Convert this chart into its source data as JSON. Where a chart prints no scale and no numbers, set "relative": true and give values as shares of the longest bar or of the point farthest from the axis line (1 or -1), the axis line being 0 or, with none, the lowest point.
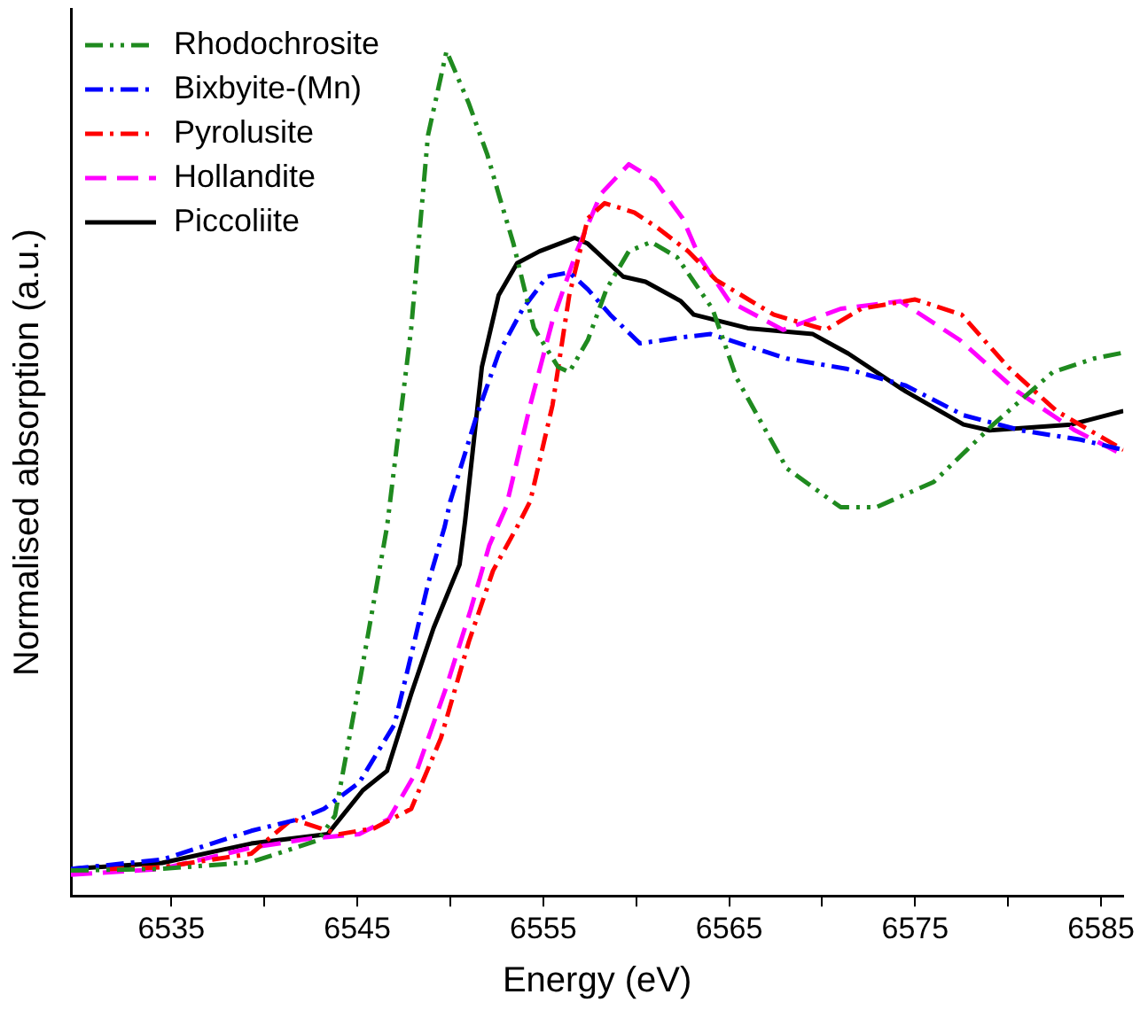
{
  "chart_data": {
    "type": "line",
    "relative": true,
    "xlabel": "Energy (eV)",
    "ylabel": "Normalised absorption (a.u.)",
    "xlim": [
      6529.6,
      6586.2
    ],
    "xticks": [
      6535,
      {
        "value": 6540,
        "label": null
      },
      6545,
      {
        "value": 6550,
        "label": null
      },
      6555,
      {
        "value": 6560,
        "label": null
      },
      6565,
      {
        "value": 6570,
        "label": null
      },
      6575,
      {
        "value": 6580,
        "label": null
      },
      6585
    ],
    "grid": false,
    "legend": "top left",
    "marker": "none",
    "series": [
      {
        "name": "Rhodochrosite",
        "color": "#1f8a1f",
        "line_style": "dashdotdot",
        "x": [
          6529.6,
          6534.5,
          6539.3,
          6542.9,
          6543.8,
          6545.2,
          6546.6,
          6547.9,
          6548.8,
          6549.8,
          6551.0,
          6552.0,
          6552.6,
          6553.4,
          6554.5,
          6555.8,
          6556.4,
          6557.4,
          6558.4,
          6559.6,
          6560.8,
          6562.2,
          6564.1,
          6565.4,
          6568.1,
          6571.0,
          6572.9,
          6576.0,
          6579.2,
          6582.4,
          6584.6,
          6586.2
        ],
        "values": [
          0.03,
          0.032,
          0.04,
          0.066,
          0.095,
          0.262,
          0.437,
          0.672,
          0.9,
          1,
          0.938,
          0.877,
          0.831,
          0.772,
          0.672,
          0.626,
          0.62,
          0.658,
          0.718,
          0.763,
          0.774,
          0.756,
          0.695,
          0.613,
          0.506,
          0.46,
          0.46,
          0.49,
          0.558,
          0.62,
          0.636,
          0.643
        ]
      },
      {
        "name": "Bixbyite-(Mn)",
        "color": "#0000ff",
        "line_style": "dashdot",
        "x": [
          6529.6,
          6534.5,
          6539.3,
          6541.9,
          6543.2,
          6545.1,
          6547.0,
          6547.9,
          6548.8,
          6549.7,
          6550.0,
          6551.4,
          6552.6,
          6553.9,
          6555.2,
          6556.4,
          6557.4,
          6558.6,
          6560.2,
          6562.4,
          6564.0,
          6568.1,
          6571.3,
          6574.5,
          6577.6,
          6580.7,
          6583.9,
          6586.2
        ],
        "values": [
          0.032,
          0.043,
          0.077,
          0.091,
          0.103,
          0.134,
          0.203,
          0.285,
          0.369,
          0.437,
          0.467,
          0.567,
          0.642,
          0.695,
          0.733,
          0.738,
          0.718,
          0.688,
          0.654,
          0.661,
          0.665,
          0.636,
          0.624,
          0.604,
          0.569,
          0.551,
          0.54,
          0.528
        ]
      },
      {
        "name": "Pyrolusite",
        "color": "#ff0000",
        "line_style": "dashdot",
        "x": [
          6529.6,
          6534.5,
          6539.3,
          6541.5,
          6544.0,
          6545.9,
          6547.9,
          6549.5,
          6551.0,
          6552.3,
          6553.6,
          6554.3,
          6555.5,
          6556.4,
          6557.4,
          6558.3,
          6559.9,
          6561.2,
          6562.8,
          6564.3,
          6567.4,
          6570.2,
          6572.1,
          6575.0,
          6577.5,
          6580.0,
          6582.6,
          6586.2
        ],
        "values": [
          0.03,
          0.034,
          0.05,
          0.091,
          0.073,
          0.08,
          0.103,
          0.187,
          0.301,
          0.385,
          0.437,
          0.467,
          0.581,
          0.711,
          0.802,
          0.82,
          0.809,
          0.79,
          0.763,
          0.729,
          0.688,
          0.67,
          0.695,
          0.706,
          0.688,
          0.626,
          0.574,
          0.528
        ]
      },
      {
        "name": "Hollandite",
        "color": "#ff00ff",
        "line_style": "dashed",
        "x": [
          6529.6,
          6534.5,
          6539.3,
          6542.5,
          6545.1,
          6546.7,
          6548.2,
          6549.8,
          6551.1,
          6552.1,
          6553.0,
          6554.3,
          6555.5,
          6556.8,
          6558.1,
          6559.6,
          6561.0,
          6562.5,
          6563.4,
          6565.0,
          6567.9,
          6571.0,
          6574.2,
          6577.4,
          6580.5,
          6583.6,
          6586.2
        ],
        "values": [
          0.025,
          0.032,
          0.057,
          0.068,
          0.073,
          0.091,
          0.148,
          0.248,
          0.339,
          0.415,
          0.46,
          0.581,
          0.681,
          0.763,
          0.831,
          0.866,
          0.847,
          0.802,
          0.756,
          0.704,
          0.67,
          0.695,
          0.704,
          0.658,
          0.597,
          0.551,
          0.522
        ]
      },
      {
        "name": "Piccoliite",
        "color": "#000000",
        "line_style": "solid",
        "x": [
          6529.6,
          6534.5,
          6539.3,
          6543.4,
          6545.3,
          6546.6,
          6547.9,
          6549.1,
          6550.5,
          6550.8,
          6551.7,
          6552.6,
          6553.6,
          6554.8,
          6556.7,
          6557.4,
          6559.3,
          6560.5,
          6562.4,
          6563.1,
          6566.0,
          6569.5,
          6571.4,
          6574.5,
          6577.6,
          6579.0,
          6583.4,
          6586.2
        ],
        "values": [
          0.032,
          0.039,
          0.062,
          0.073,
          0.125,
          0.148,
          0.239,
          0.317,
          0.392,
          0.444,
          0.626,
          0.711,
          0.749,
          0.763,
          0.779,
          0.772,
          0.733,
          0.727,
          0.704,
          0.688,
          0.672,
          0.665,
          0.642,
          0.597,
          0.558,
          0.551,
          0.558,
          0.574
        ]
      }
    ]
  }
}
